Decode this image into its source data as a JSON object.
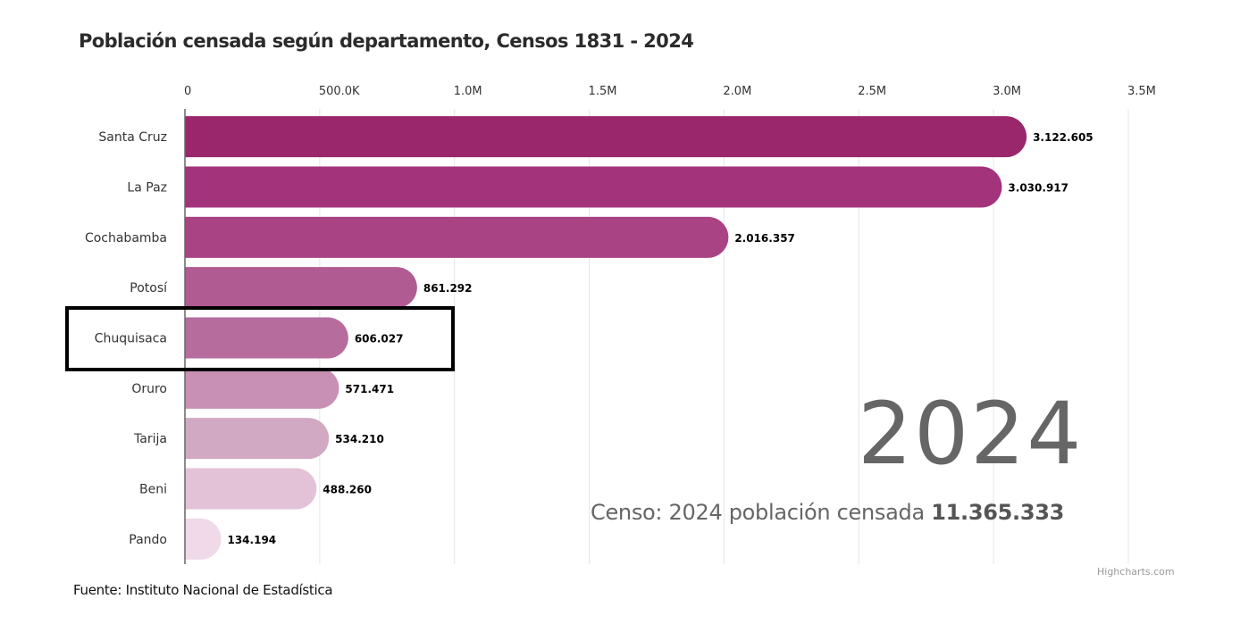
{
  "chart_data": {
    "type": "bar",
    "orientation": "horizontal",
    "title": "Población censada según departamento, Censos 1831 - 2024",
    "xlabel": "",
    "ylabel": "",
    "xlim": [
      0,
      3500000
    ],
    "xticks": [
      0,
      500000,
      1000000,
      1500000,
      2000000,
      2500000,
      3000000,
      3500000
    ],
    "xtick_labels": [
      "0",
      "500.0K",
      "1.0M",
      "1.5M",
      "2.0M",
      "2.5M",
      "3.0M",
      "3.5M"
    ],
    "x_axis_position": "top",
    "grid": true,
    "legend": "none",
    "categories": [
      "Santa Cruz",
      "La Paz",
      "Cochabamba",
      "Potosí",
      "Chuquisaca",
      "Oruro",
      "Tarija",
      "Beni",
      "Pando"
    ],
    "values": [
      3122605,
      3030917,
      2016357,
      861292,
      606027,
      571471,
      534210,
      488260,
      134194
    ],
    "data_labels": [
      "3.122.605",
      "3.030.917",
      "2.016.357",
      "861.292",
      "606.027",
      "571.471",
      "534.210",
      "488.260",
      "134.194"
    ],
    "colors": [
      "#9a266c",
      "#a3337a",
      "#aa4383",
      "#b05b92",
      "#b66c9d",
      "#c890b5",
      "#d1a9c3",
      "#e3c2d8",
      "#f0d9e8"
    ],
    "highlighted_category": "Chuquisaca",
    "annotations": {
      "year": "2024",
      "total_prefix": "Censo: 2024 población censada",
      "total_value": "11.365.333"
    }
  },
  "source": "Fuente: Instituto Nacional de Estadística",
  "credits": "Highcharts.com"
}
